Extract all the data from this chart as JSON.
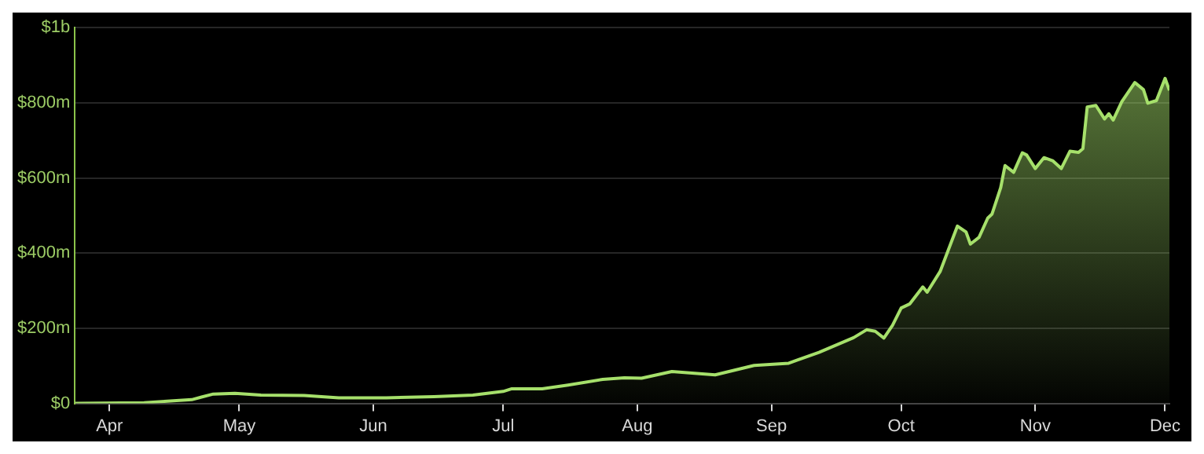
{
  "chart_data": {
    "type": "area",
    "x": [
      "--03-24",
      "--04-09",
      "--04-20",
      "--04-25",
      "--04-30",
      "--05-06",
      "--05-16",
      "--05-24",
      "--06-04",
      "--06-15",
      "--06-24",
      "--07-01",
      "--07-03",
      "--07-10",
      "--07-16",
      "--07-24",
      "--07-29",
      "--08-02",
      "--08-09",
      "--08-19",
      "--08-28",
      "--09-05",
      "--09-12",
      "--09-20",
      "--09-23",
      "--09-25",
      "--09-27",
      "--09-29",
      "--10-01",
      "--10-03",
      "--10-06",
      "--10-07",
      "--10-10",
      "--10-14",
      "--10-16",
      "--10-17",
      "--10-19",
      "--10-21",
      "--10-22",
      "--10-24",
      "--10-25",
      "--10-27",
      "--10-29",
      "--10-30",
      "--11-01",
      "--11-03",
      "--11-05",
      "--11-07",
      "--11-09",
      "--11-11",
      "--11-12",
      "--11-13",
      "--11-15",
      "--11-17",
      "--11-18",
      "--11-19",
      "--11-21",
      "--11-24",
      "--11-26",
      "--11-27",
      "--11-29",
      "--12-01",
      "--12-02"
    ],
    "series": [
      {
        "color": "#a6e06b",
        "values": [
          0,
          2000000,
          10000000,
          25000000,
          27000000,
          22000000,
          21000000,
          15000000,
          15000000,
          18000000,
          22000000,
          32000000,
          39000000,
          39000000,
          49000000,
          64000000,
          68000000,
          67000000,
          85000000,
          76000000,
          101000000,
          107000000,
          136000000,
          175000000,
          196000000,
          192000000,
          174000000,
          208000000,
          254000000,
          265000000,
          310000000,
          296000000,
          351000000,
          472000000,
          456000000,
          424000000,
          442000000,
          493000000,
          504000000,
          574000000,
          633000000,
          615000000,
          667000000,
          661000000,
          625000000,
          654000000,
          646000000,
          625000000,
          671000000,
          668000000,
          678000000,
          789000000,
          793000000,
          757000000,
          771000000,
          754000000,
          803000000,
          854000000,
          835000000,
          799000000,
          806000000,
          865000000,
          833000000
        ]
      }
    ],
    "xlim": [
      "--03-24",
      "--12-02"
    ],
    "xticks": [
      {
        "value": "--04-01",
        "label": "Apr"
      },
      {
        "value": "--05-01",
        "label": "May"
      },
      {
        "value": "--06-01",
        "label": "Jun"
      },
      {
        "value": "--07-01",
        "label": "Jul"
      },
      {
        "value": "--08-01",
        "label": "Aug"
      },
      {
        "value": "--09-01",
        "label": "Sep"
      },
      {
        "value": "--10-01",
        "label": "Oct"
      },
      {
        "value": "--11-01",
        "label": "Nov"
      },
      {
        "value": "--12-01",
        "label": "Dec"
      }
    ],
    "ylim": [
      0,
      1000000000
    ],
    "yticks": [
      {
        "value": 0,
        "label": "$0"
      },
      {
        "value": 200000000,
        "label": "$200m"
      },
      {
        "value": 400000000,
        "label": "$400m"
      },
      {
        "value": 600000000,
        "label": "$600m"
      },
      {
        "value": 800000000,
        "label": "$800m"
      },
      {
        "value": 1000000000,
        "label": "$1b"
      }
    ],
    "grid": "y",
    "legend": false,
    "marker": "none",
    "line_style": "solid"
  }
}
